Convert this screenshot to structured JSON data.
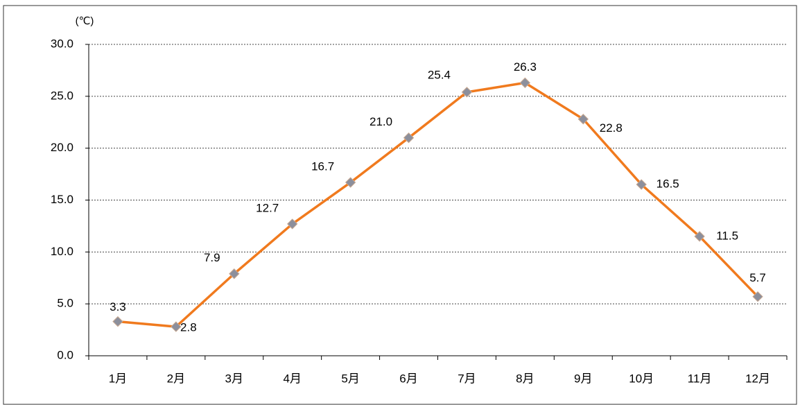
{
  "chart_data": {
    "type": "line",
    "y_unit": "(℃)",
    "categories": [
      "1月",
      "2月",
      "3月",
      "4月",
      "5月",
      "6月",
      "7月",
      "8月",
      "9月",
      "10月",
      "11月",
      "12月"
    ],
    "values": [
      3.3,
      2.8,
      7.9,
      12.7,
      16.7,
      21.0,
      25.4,
      26.3,
      22.8,
      16.5,
      11.5,
      5.7
    ],
    "value_labels": [
      "3.3",
      "2.8",
      "7.9",
      "12.7",
      "16.7",
      "21.0",
      "25.4",
      "26.3",
      "22.8",
      "16.5",
      "11.5",
      "5.7"
    ],
    "color": "#f07a1e",
    "marker_color": "#8c8f9c",
    "ylim": [
      0,
      30
    ],
    "yticks": [
      {
        "value": 0,
        "label": "0.0"
      },
      {
        "value": 5,
        "label": "5.0"
      },
      {
        "value": 10,
        "label": "10.0"
      },
      {
        "value": 15,
        "label": "15.0"
      },
      {
        "value": 20,
        "label": "20.0"
      },
      {
        "value": 25,
        "label": "25.0"
      },
      {
        "value": 30,
        "label": "30.0"
      }
    ],
    "grid": true
  }
}
